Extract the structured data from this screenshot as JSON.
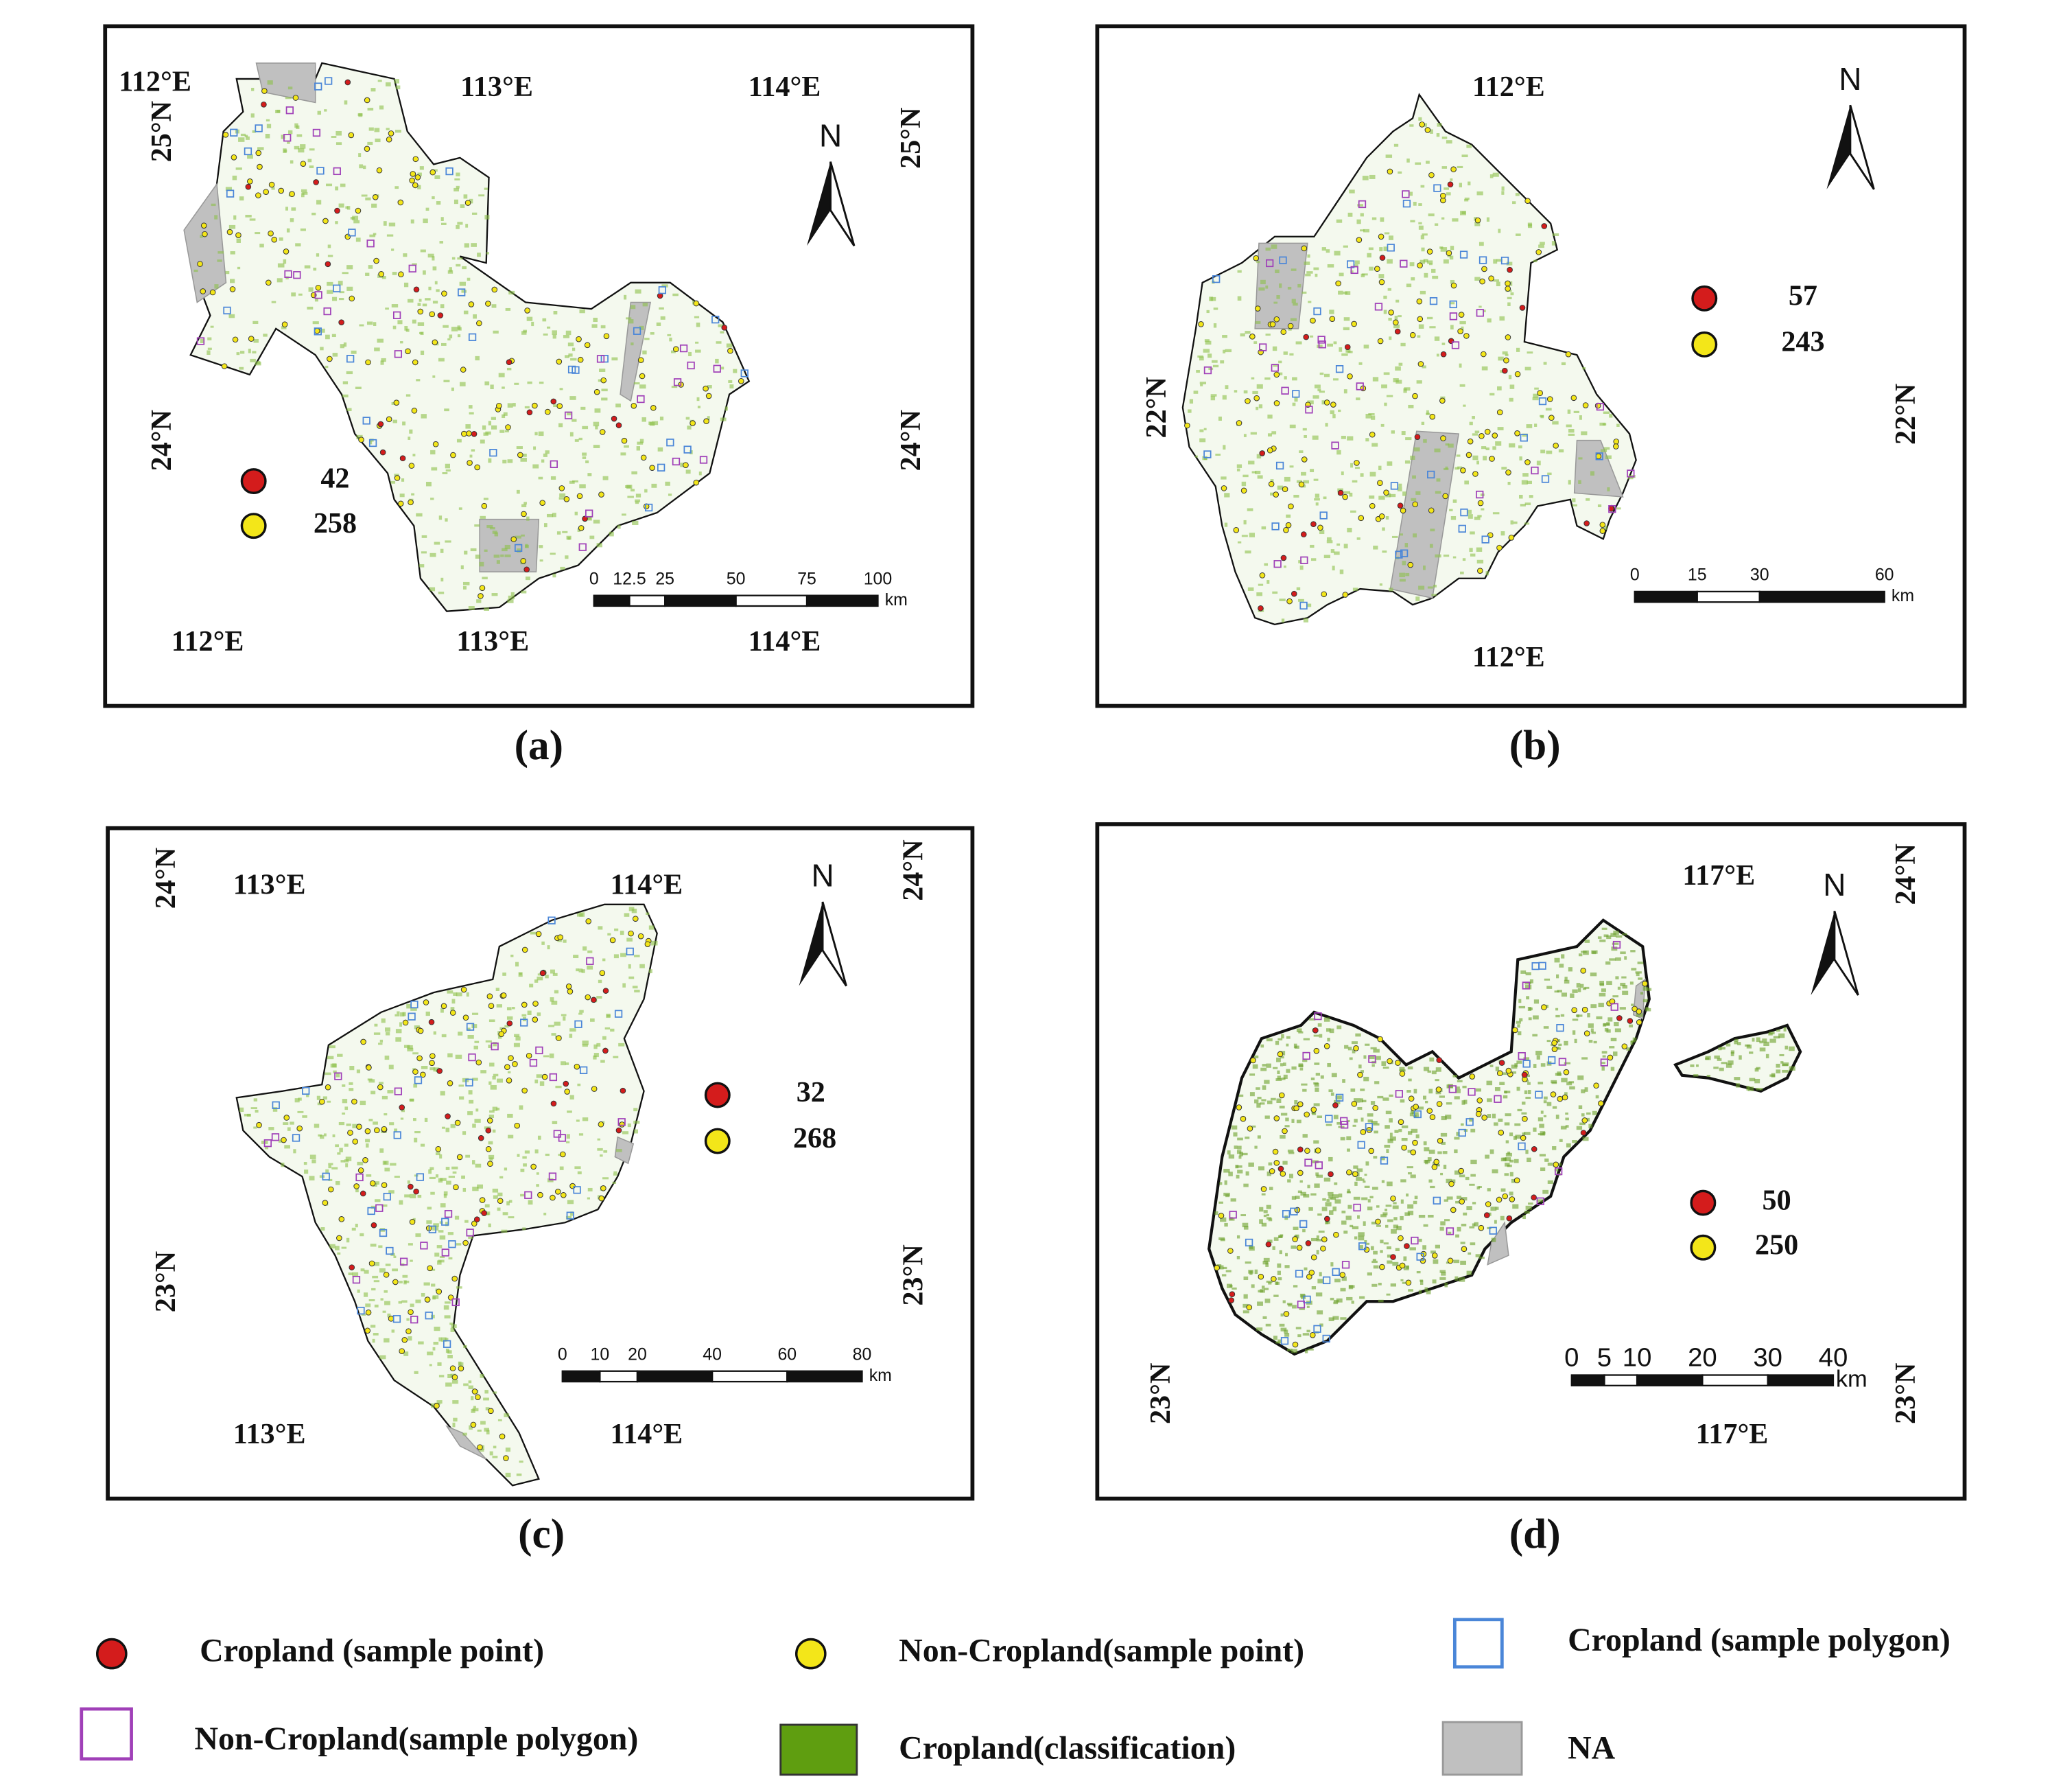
{
  "panels": [
    {
      "label": "(a)",
      "lon_top": [
        "112°E",
        "113°E",
        "114°E"
      ],
      "lon_bottom": [
        "112°E",
        "113°E",
        "114°E"
      ],
      "lat_left": [
        "25°N",
        "24°N"
      ],
      "lat_right": [
        "25°N",
        "24°N"
      ],
      "north": "N",
      "counts": [
        42,
        258
      ],
      "scale_ticks": [
        0,
        12.5,
        25,
        50,
        75,
        100
      ],
      "scale_unit": "km"
    },
    {
      "label": "(b)",
      "lon_top": [
        "112°E"
      ],
      "lon_bottom": [
        "112°E"
      ],
      "lat_left": [
        "22°N"
      ],
      "lat_right": [
        "22°N"
      ],
      "north": "N",
      "counts": [
        57,
        243
      ],
      "scale_ticks": [
        0,
        15,
        30,
        60
      ],
      "scale_unit": "km"
    },
    {
      "label": "(c)",
      "lon_top": [
        "113°E",
        "114°E"
      ],
      "lon_bottom": [
        "113°E",
        "114°E"
      ],
      "lat_left": [
        "24°N",
        "23°N"
      ],
      "lat_right": [
        "24°N",
        "23°N"
      ],
      "north": "N",
      "counts": [
        32,
        268
      ],
      "scale_ticks": [
        0,
        10,
        20,
        40,
        60,
        80
      ],
      "scale_unit": "km"
    },
    {
      "label": "(d)",
      "lon_top": [
        "117°E"
      ],
      "lon_bottom": [
        "117°E"
      ],
      "lat_left": [
        "23°N"
      ],
      "lat_right": [
        "24°N",
        "23°N"
      ],
      "north": "N",
      "counts": [
        50,
        250
      ],
      "scale_ticks": [
        0,
        5,
        10,
        20,
        30,
        40
      ],
      "scale_unit": "km"
    }
  ],
  "legend": [
    "Cropland (sample point)",
    "Non-Cropland(sample point)",
    "Cropland (sample polygon)",
    "Non-Cropland(sample polygon)",
    "Cropland(classification)",
    "NA"
  ]
}
